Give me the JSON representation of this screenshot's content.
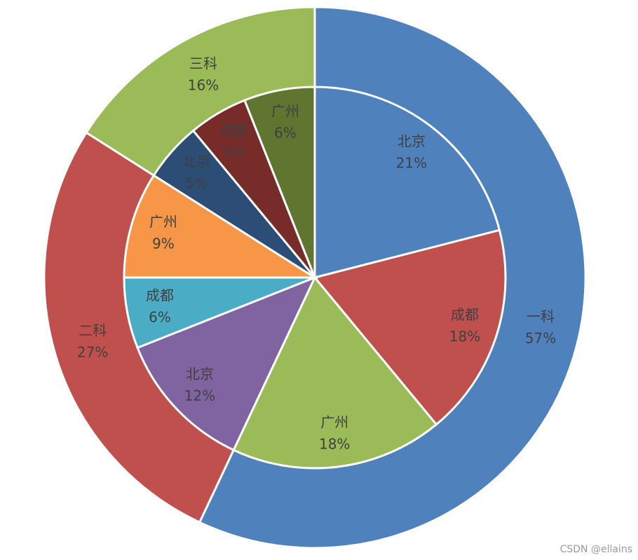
{
  "chart_data": {
    "type": "pie",
    "series": [
      {
        "categories": [
          "一科",
          "二科",
          "三科"
        ],
        "values": [
          57,
          27,
          16
        ],
        "value_labels": [
          "57%",
          "27%",
          "16%"
        ],
        "colors": [
          "#4f81bd",
          "#c0504d",
          "#9bbb59"
        ]
      },
      {
        "categories": [
          "北京",
          "成都",
          "广州",
          "北京",
          "成都",
          "广州",
          "北京",
          "成都",
          "广州"
        ],
        "values": [
          21,
          18,
          18,
          12,
          6,
          9,
          5,
          5,
          6
        ],
        "value_labels": [
          "21%",
          "18%",
          "18%",
          "12%",
          "6%",
          "9%",
          "5%",
          "5%",
          "6%"
        ],
        "colors": [
          "#4f81bd",
          "#c0504d",
          "#9bbb59",
          "#8064a2",
          "#4bacc6",
          "#f79646",
          "#2c4d75",
          "#772c2a",
          "#5f7530"
        ]
      }
    ]
  },
  "watermark": "CSDN @ellains"
}
